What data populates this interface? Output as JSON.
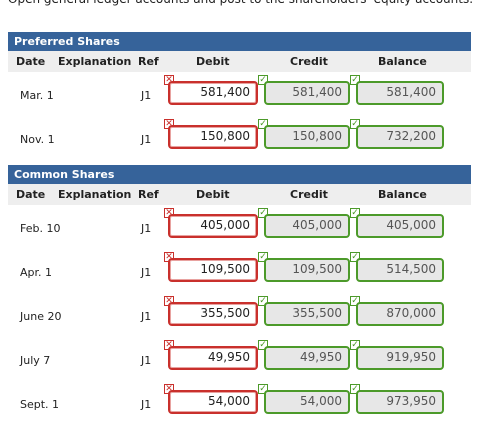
{
  "instruction": "Open general ledger accounts and post to the shareholders' equity accounts.",
  "columns": {
    "date": "Date",
    "explanation": "Explanation",
    "ref": "Ref",
    "debit": "Debit",
    "credit": "Credit",
    "balance": "Balance"
  },
  "preferred": {
    "title": "Preferred Shares",
    "rows": [
      {
        "date": "Mar. 1",
        "ref": "J1",
        "debit": "581,400",
        "credit": "581,400",
        "balance": "581,400"
      },
      {
        "date": "Nov. 1",
        "ref": "J1",
        "debit": "150,800",
        "credit": "150,800",
        "balance": "732,200"
      }
    ]
  },
  "common": {
    "title": "Common Shares",
    "rows": [
      {
        "date": "Feb. 10",
        "ref": "J1",
        "debit": "405,000",
        "credit": "405,000",
        "balance": "405,000"
      },
      {
        "date": "Apr. 1",
        "ref": "J1",
        "debit": "109,500",
        "credit": "109,500",
        "balance": "514,500"
      },
      {
        "date": "June 20",
        "ref": "J1",
        "debit": "355,500",
        "credit": "355,500",
        "balance": "870,000"
      },
      {
        "date": "July 7",
        "ref": "J1",
        "debit": "49,950",
        "credit": "49,950",
        "balance": "919,950"
      },
      {
        "date": "Sept. 1",
        "ref": "J1",
        "debit": "54,000",
        "credit": "54,000",
        "balance": "973,950"
      }
    ]
  },
  "marks": {
    "wrong": "✕",
    "correct": "✓"
  }
}
